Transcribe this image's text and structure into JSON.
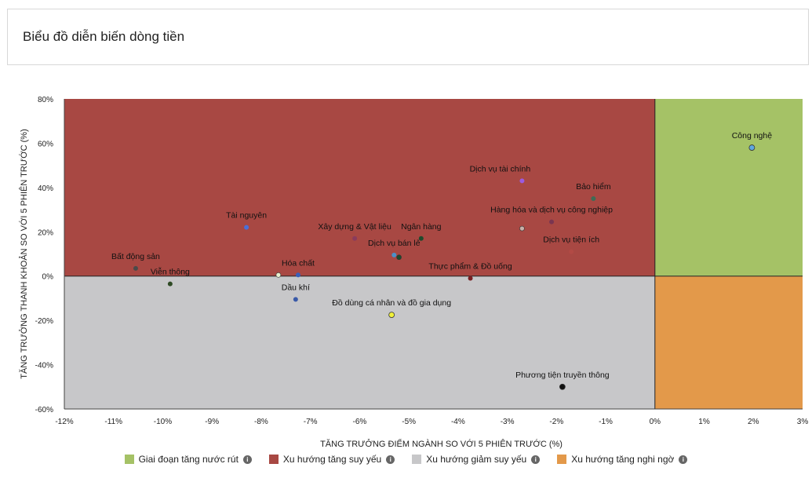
{
  "header": {
    "title": "Biểu đồ diễn biến dòng tiền"
  },
  "colors": {
    "top_left": "#a84843",
    "top_right": "#a5c266",
    "bottom_left": "#c7c7c9",
    "bottom_right": "#e3994a"
  },
  "legend": [
    {
      "label": "Giai đoạn tăng nước rút",
      "color": "#a5c266",
      "icon": "info-icon"
    },
    {
      "label": "Xu hướng tăng suy yếu",
      "color": "#a84843",
      "icon": "info-icon"
    },
    {
      "label": "Xu hướng giảm suy yếu",
      "color": "#c7c7c9",
      "icon": "info-icon"
    },
    {
      "label": "Xu hướng tăng nghi ngờ",
      "color": "#e3994a",
      "icon": "info-icon"
    }
  ],
  "chart_data": {
    "type": "scatter",
    "xlabel": "TĂNG TRƯỞNG ĐIỂM NGÀNH SO VỚI 5 PHIÊN TRƯỚC (%)",
    "ylabel": "TĂNG TRƯỞNG THANH KHOẢN SO VỚI 5 PHIÊN TRƯỚC (%)",
    "xlim": [
      -12,
      3
    ],
    "ylim": [
      -60,
      80
    ],
    "xticks": [
      "-12%",
      "-11%",
      "-10%",
      "-9%",
      "-8%",
      "-7%",
      "-6%",
      "-5%",
      "-4%",
      "-3%",
      "-2%",
      "-1%",
      "0%",
      "1%",
      "2%",
      "3%"
    ],
    "yticks": [
      "80%",
      "60%",
      "40%",
      "20%",
      "0%",
      "-20%",
      "-40%",
      "-60%"
    ],
    "points": [
      {
        "name": "Công nghệ",
        "x": 1.97,
        "y": 58,
        "color": "#5fa8e0"
      },
      {
        "name": "Dịch vụ tài chính",
        "x": -2.7,
        "y": 43,
        "color": "#9b5be0"
      },
      {
        "name": "Bảo hiểm",
        "x": -1.25,
        "y": 35,
        "color": "#3f6b55"
      },
      {
        "name": "Hàng hóa và dịch vụ công nghiệp",
        "x": -2.1,
        "y": 24.5,
        "color": "#7a3550"
      },
      {
        "name": "Dịch vụ tiện ích",
        "x": -1.7,
        "y": 11,
        "color": "#b24a45"
      },
      {
        "name": "Tài nguyên",
        "x": -8.3,
        "y": 22,
        "color": "#4a70d8"
      },
      {
        "name": "Xây dựng & Vật liệu",
        "x": -6.1,
        "y": 17,
        "color": "#8a3b5c"
      },
      {
        "name": "Ngân hàng",
        "x": -4.75,
        "y": 17,
        "color": "#1e4a2c"
      },
      {
        "name": "Dịch vụ bán lẻ",
        "x": -5.3,
        "y": 9.5,
        "color": "#4a90c8"
      },
      {
        "name": "Thực phẩm & Đồ uống",
        "x": -3.75,
        "y": -1,
        "color": "#7a1f22"
      },
      {
        "name": "Bất động sản",
        "x": -10.55,
        "y": 3.5,
        "color": "#4a4a4a"
      },
      {
        "name": "Hóa chất",
        "x": -7.25,
        "y": 0.5,
        "color": "#3a5fb8"
      },
      {
        "name": "Viễn thông",
        "x": -9.85,
        "y": -3.5,
        "color": "#2e4a24"
      },
      {
        "name": "Dầu khí",
        "x": -7.3,
        "y": -10.5,
        "color": "#3a5aa8"
      },
      {
        "name": "Đồ dùng cá nhân và đồ gia dụng",
        "x": -5.35,
        "y": -17.5,
        "color": "#f0f03a"
      },
      {
        "name": "Phương tiện truyền thông",
        "x": -1.88,
        "y": -50,
        "color": "#111111"
      }
    ],
    "extra_points": [
      {
        "x": -7.65,
        "y": 0.5,
        "color": "#e8f0d0"
      },
      {
        "x": -2.7,
        "y": 21.5,
        "color": "#c9b0a8"
      },
      {
        "x": -5.2,
        "y": 8.5,
        "color": "#1e4a2c"
      }
    ],
    "labels": {
      "Công nghệ": [
        0,
        -12
      ],
      "Dịch vụ tài chính": [
        -28,
        -12
      ],
      "Bảo hiểm": [
        0,
        -12
      ],
      "Hàng hóa và dịch vụ công nghiệp": [
        0,
        -12
      ],
      "Dịch vụ tiện ích": [
        0,
        -12
      ],
      "Tài nguyên": [
        0,
        -12
      ],
      "Xây dựng & Vật liệu": [
        0,
        -12
      ],
      "Ngân hàng": [
        0,
        -12
      ],
      "Dịch vụ bán lẻ": [
        0,
        -12
      ],
      "Thực phẩm & Đồ uống": [
        0,
        -12
      ],
      "Bất động sản": [
        0,
        -12
      ],
      "Hóa chất": [
        0,
        -12
      ],
      "Viễn thông": [
        0,
        -12
      ],
      "Dầu khí": [
        0,
        -12
      ],
      "Đồ dùng cá nhân và đồ gia dụng": [
        0,
        -12
      ],
      "Phương tiện truyền thông": [
        0,
        -12
      ]
    }
  }
}
